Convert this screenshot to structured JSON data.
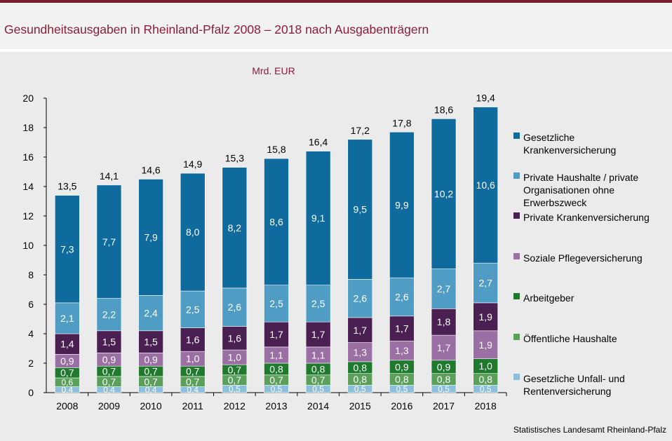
{
  "title": "Gesundheitsausgaben in Rheinland-Pfalz 2008 – 2018 nach Ausgabenträgern",
  "source": "Statistisches Landesamt Rheinland-Pfalz",
  "chart_data": {
    "type": "bar",
    "stacked": true,
    "unit_label": "Mrd. EUR",
    "categories": [
      "2008",
      "2009",
      "2010",
      "2011",
      "2012",
      "2013",
      "2014",
      "2015",
      "2016",
      "2017",
      "2018"
    ],
    "ylim": [
      0,
      20
    ],
    "yticks": [
      0,
      2,
      4,
      6,
      8,
      10,
      12,
      14,
      16,
      18,
      20
    ],
    "grid": false,
    "legend_position": "right",
    "totals": [
      "13,5",
      "14,1",
      "14,6",
      "14,9",
      "15,3",
      "15,8",
      "16,4",
      "17,2",
      "17,8",
      "18,6",
      "19,4"
    ],
    "series": [
      {
        "name": "Gesetzliche Unfall- und Rentenversicherung",
        "color": "#8bbfdc",
        "values": [
          0.4,
          0.4,
          0.4,
          0.4,
          0.5,
          0.5,
          0.5,
          0.5,
          0.5,
          0.5,
          0.5
        ],
        "labels": [
          "0,4",
          "0,4",
          "0,4",
          "0,4",
          "0,5",
          "0,5",
          "0,5",
          "0,5",
          "0,5",
          "0,5",
          "0,5"
        ]
      },
      {
        "name": "Öffentliche Haushalte",
        "color": "#5aa05a",
        "values": [
          0.6,
          0.7,
          0.7,
          0.7,
          0.7,
          0.7,
          0.7,
          0.8,
          0.8,
          0.8,
          0.8
        ],
        "labels": [
          "0,6",
          "0,7",
          "0,7",
          "0,7",
          "0,7",
          "0,7",
          "0,7",
          "0,8",
          "0,8",
          "0,8",
          "0,8"
        ]
      },
      {
        "name": "Arbeitgeber",
        "color": "#1f7a2e",
        "values": [
          0.7,
          0.7,
          0.7,
          0.7,
          0.7,
          0.8,
          0.8,
          0.8,
          0.9,
          0.9,
          1.0
        ],
        "labels": [
          "0,7",
          "0,7",
          "0,7",
          "0,7",
          "0,7",
          "0,8",
          "0,8",
          "0,8",
          "0,9",
          "0,9",
          "1,0"
        ]
      },
      {
        "name": "Soziale Pflegeversicherung",
        "color": "#9a6fa3",
        "values": [
          0.9,
          0.9,
          0.9,
          1.0,
          1.0,
          1.1,
          1.1,
          1.3,
          1.3,
          1.7,
          1.9
        ],
        "labels": [
          "0,9",
          "0,9",
          "0,9",
          "1,0",
          "1,0",
          "1,1",
          "1,1",
          "1,3",
          "1,3",
          "1,7",
          "1,9"
        ]
      },
      {
        "name": "Private Krankenversicherung",
        "color": "#4a1f52",
        "values": [
          1.4,
          1.5,
          1.5,
          1.6,
          1.6,
          1.7,
          1.7,
          1.7,
          1.7,
          1.8,
          1.9
        ],
        "labels": [
          "1,4",
          "1,5",
          "1,5",
          "1,6",
          "1,6",
          "1,7",
          "1,7",
          "1,7",
          "1,7",
          "1,8",
          "1,9"
        ]
      },
      {
        "name": "Private Haushalte / private Organisationen ohne Erwerbszweck",
        "color": "#4f9dc4",
        "values": [
          2.1,
          2.2,
          2.4,
          2.5,
          2.6,
          2.5,
          2.5,
          2.6,
          2.6,
          2.7,
          2.7
        ],
        "labels": [
          "2,1",
          "2,2",
          "2,4",
          "2,5",
          "2,6",
          "2,5",
          "2,5",
          "2,6",
          "2,6",
          "2,7",
          "2,7"
        ]
      },
      {
        "name": "Gesetzliche Krankenversicherung",
        "color": "#0f6a9e",
        "values": [
          7.3,
          7.7,
          7.9,
          8.0,
          8.2,
          8.6,
          9.1,
          9.5,
          9.9,
          10.2,
          10.6
        ],
        "labels": [
          "7,3",
          "7,7",
          "7,9",
          "8,0",
          "8,2",
          "8,6",
          "9,1",
          "9,5",
          "9,9",
          "10,2",
          "10,6"
        ]
      }
    ]
  },
  "legend": [
    {
      "label": "Gesetzliche\nKrankenversicherung",
      "color": "#0f6a9e"
    },
    {
      "label": "Private Haushalte / private\nOrganisationen ohne\nErwerbszweck",
      "color": "#4f9dc4"
    },
    {
      "label": "Private Krankenversicherung",
      "color": "#4a1f52"
    },
    {
      "label": "Soziale Pflegeversicherung",
      "color": "#9a6fa3"
    },
    {
      "label": "Arbeitgeber",
      "color": "#1f7a2e"
    },
    {
      "label": "Öffentliche Haushalte",
      "color": "#5aa05a"
    },
    {
      "label": "Gesetzliche Unfall- und\nRentenversicherung",
      "color": "#8bbfdc"
    }
  ]
}
